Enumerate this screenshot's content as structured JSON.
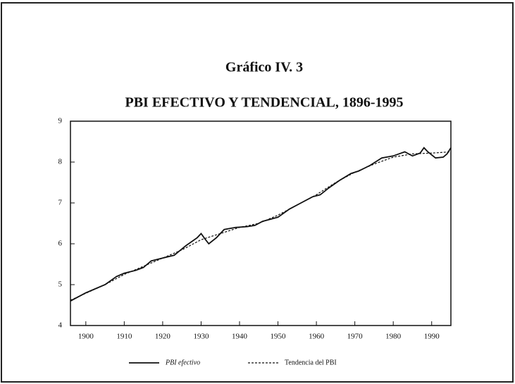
{
  "chart_data": {
    "type": "line",
    "title": "Gráfico IV. 3",
    "subtitle": "PBI EFECTIVO Y TENDENCIAL, 1896-1995",
    "xlim": [
      1896,
      1995
    ],
    "xticks": [
      1900,
      1910,
      1920,
      1930,
      1940,
      1950,
      1960,
      1970,
      1980,
      1990
    ],
    "ylim": [
      4,
      9
    ],
    "yticks": [
      4,
      5,
      6,
      7,
      8,
      9
    ],
    "series": [
      {
        "name": "PBI efectivo",
        "color": "#111111",
        "dash": false,
        "x": [
          1896,
          1900,
          1905,
          1908,
          1910,
          1913,
          1915,
          1917,
          1920,
          1923,
          1926,
          1929,
          1930,
          1931,
          1932,
          1934,
          1936,
          1939,
          1942,
          1944,
          1946,
          1950,
          1953,
          1956,
          1959,
          1961,
          1963,
          1966,
          1969,
          1971,
          1974,
          1977,
          1980,
          1983,
          1985,
          1987,
          1988,
          1989,
          1991,
          1993,
          1994,
          1995
        ],
        "values": [
          4.6,
          4.8,
          5.0,
          5.2,
          5.28,
          5.35,
          5.42,
          5.58,
          5.65,
          5.72,
          5.95,
          6.15,
          6.25,
          6.12,
          6.0,
          6.15,
          6.35,
          6.4,
          6.42,
          6.45,
          6.55,
          6.65,
          6.85,
          7.0,
          7.15,
          7.2,
          7.35,
          7.55,
          7.72,
          7.78,
          7.92,
          8.1,
          8.15,
          8.25,
          8.15,
          8.22,
          8.35,
          8.25,
          8.1,
          8.12,
          8.2,
          8.35
        ]
      },
      {
        "name": "Tendencia del PBI",
        "color": "#111111",
        "dash": true,
        "x": [
          1896,
          1905,
          1910,
          1920,
          1925,
          1930,
          1935,
          1940,
          1945,
          1950,
          1955,
          1960,
          1965,
          1970,
          1975,
          1980,
          1985,
          1990,
          1995
        ],
        "values": [
          4.62,
          5.0,
          5.25,
          5.65,
          5.85,
          6.1,
          6.25,
          6.4,
          6.5,
          6.7,
          6.95,
          7.2,
          7.5,
          7.75,
          7.95,
          8.12,
          8.2,
          8.22,
          8.25
        ]
      }
    ]
  }
}
